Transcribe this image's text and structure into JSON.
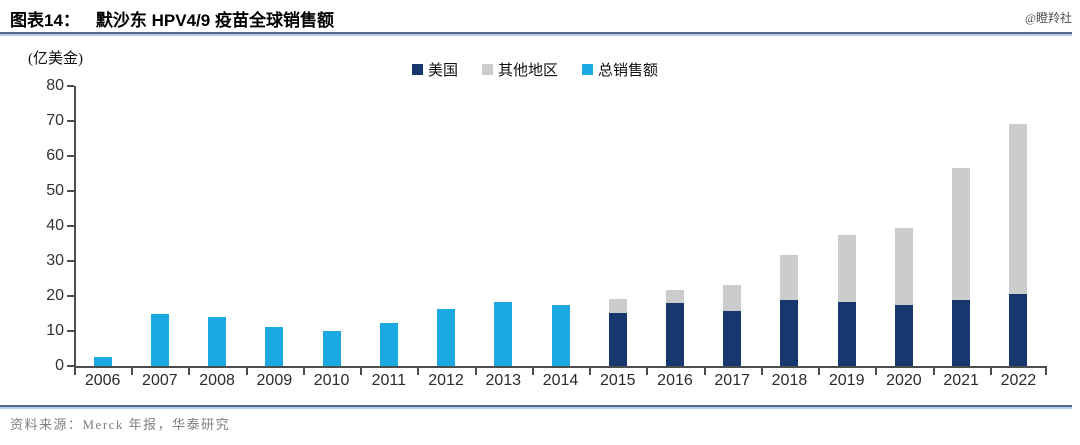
{
  "header": {
    "fig_label": "图表14：",
    "title": "默沙东 HPV4/9 疫苗全球销售额",
    "watermark": "@瞪羚社"
  },
  "footer": {
    "source": "资料来源：Merck 年报，华泰研究"
  },
  "chart_data": {
    "type": "bar",
    "stacked": true,
    "title": "默沙东 HPV4/9 疫苗全球销售额",
    "unit_label": "(亿美金)",
    "categories": [
      "2006",
      "2007",
      "2008",
      "2009",
      "2010",
      "2011",
      "2012",
      "2013",
      "2014",
      "2015",
      "2016",
      "2017",
      "2018",
      "2019",
      "2020",
      "2021",
      "2022"
    ],
    "series": [
      {
        "name": "美国",
        "color": "#17386e",
        "values": [
          0,
          0,
          0,
          0,
          0,
          0,
          0,
          0,
          0,
          15.1,
          17.9,
          15.8,
          18.8,
          18.3,
          17.5,
          18.9,
          20.7
        ]
      },
      {
        "name": "其他地区",
        "color": "#cccccc",
        "values": [
          0,
          0,
          0,
          0,
          0,
          0,
          0,
          0,
          0,
          4.0,
          3.8,
          7.3,
          12.8,
          19.1,
          22.0,
          37.8,
          48.4
        ]
      },
      {
        "name": "总销售额",
        "color": "#1ba9e1",
        "values": [
          2.5,
          15.0,
          14.0,
          11.2,
          10.0,
          12.2,
          16.4,
          18.3,
          17.4,
          0,
          0,
          0,
          0,
          0,
          0,
          0,
          0
        ]
      }
    ],
    "ylim": [
      0,
      80
    ],
    "yticks": [
      0,
      10,
      20,
      30,
      40,
      50,
      60,
      70,
      80
    ],
    "xlabel": "",
    "ylabel": "",
    "grid": false,
    "legend_position": "top-center"
  }
}
